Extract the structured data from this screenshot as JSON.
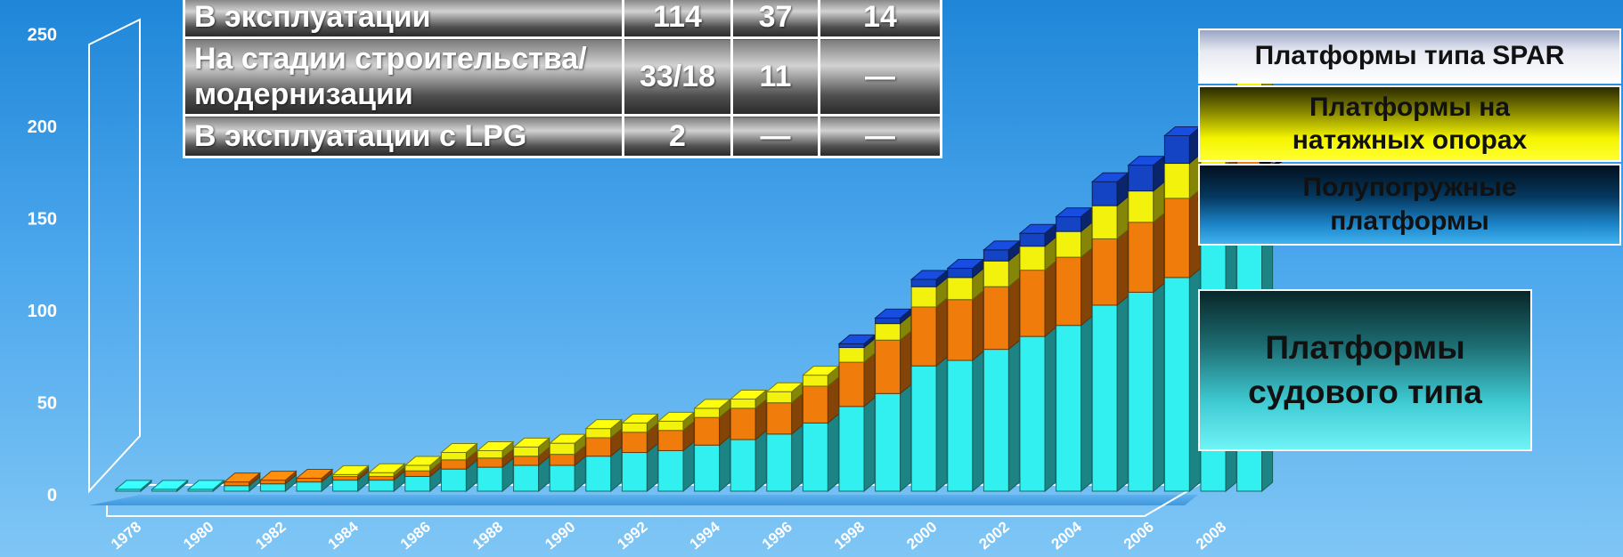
{
  "chart_data": {
    "type": "bar",
    "stacked": true,
    "categories": [
      "1978",
      "1979",
      "1980",
      "1981",
      "1982",
      "1983",
      "1984",
      "1985",
      "1986",
      "1987",
      "1988",
      "1989",
      "1990",
      "1991",
      "1992",
      "1993",
      "1994",
      "1995",
      "1996",
      "1997",
      "1998",
      "1999",
      "2000",
      "2001",
      "2002",
      "2003",
      "2004",
      "2005",
      "2006",
      "2007",
      "2008",
      "2009"
    ],
    "x_tick_labels": [
      "1978",
      "1980",
      "1982",
      "1984",
      "1986",
      "1988",
      "1990",
      "1992",
      "1994",
      "1996",
      "1998",
      "2000",
      "2002",
      "2004",
      "2006",
      "2008"
    ],
    "ylim": [
      0,
      250
    ],
    "yticks": [
      0,
      50,
      100,
      150,
      200,
      250
    ],
    "grid": false,
    "series": [
      {
        "name": "Платформы судового типа",
        "color": "#33f0f0",
        "values": [
          1,
          1,
          1,
          3,
          4,
          5,
          6,
          6,
          8,
          12,
          13,
          14,
          14,
          19,
          21,
          22,
          25,
          28,
          31,
          37,
          46,
          53,
          68,
          71,
          77,
          84,
          90,
          101,
          108,
          116,
          137,
          162
        ]
      },
      {
        "name": "Полупогружные платформы",
        "color": "#f07c0c",
        "values": [
          0,
          0,
          0,
          2,
          2,
          2,
          2,
          2,
          3,
          5,
          5,
          5,
          6,
          10,
          11,
          11,
          15,
          17,
          17,
          20,
          24,
          29,
          32,
          33,
          34,
          36,
          37,
          36,
          38,
          43,
          40,
          42
        ]
      },
      {
        "name": "Платформы на натяжных опорах",
        "color": "#f2f20c",
        "values": [
          0,
          0,
          0,
          0,
          0,
          0,
          1,
          2,
          3,
          4,
          4,
          5,
          6,
          5,
          5,
          5,
          5,
          5,
          6,
          6,
          8,
          9,
          11,
          12,
          14,
          13,
          14,
          18,
          17,
          19,
          20,
          19
        ]
      },
      {
        "name": "Платформы типа SPAR",
        "color": "#1444c4",
        "values": [
          0,
          0,
          0,
          0,
          0,
          0,
          0,
          0,
          0,
          0,
          0,
          0,
          0,
          0,
          0,
          0,
          0,
          0,
          0,
          0,
          2,
          3,
          4,
          5,
          6,
          7,
          8,
          13,
          14,
          15,
          15,
          19
        ]
      }
    ]
  },
  "table": {
    "rows": [
      {
        "label": "В эксплуатации",
        "c1": "114",
        "c2": "37",
        "c3": "14"
      },
      {
        "label": "На стадии строительства/ модернизации",
        "c1": "33/18",
        "c2": "11",
        "c3": "—"
      },
      {
        "label": "В эксплуатации с LPG",
        "c1": "2",
        "c2": "—",
        "c3": "—"
      }
    ]
  },
  "legend": {
    "spar": "Платформы типа SPAR",
    "tlp_line1": "Платформы на",
    "tlp_line2": "натяжных  опорах",
    "semi_line1": "Полупогружные",
    "semi_line2": "платформы",
    "ship_line1": "Платформы",
    "ship_line2": "судового типа"
  }
}
